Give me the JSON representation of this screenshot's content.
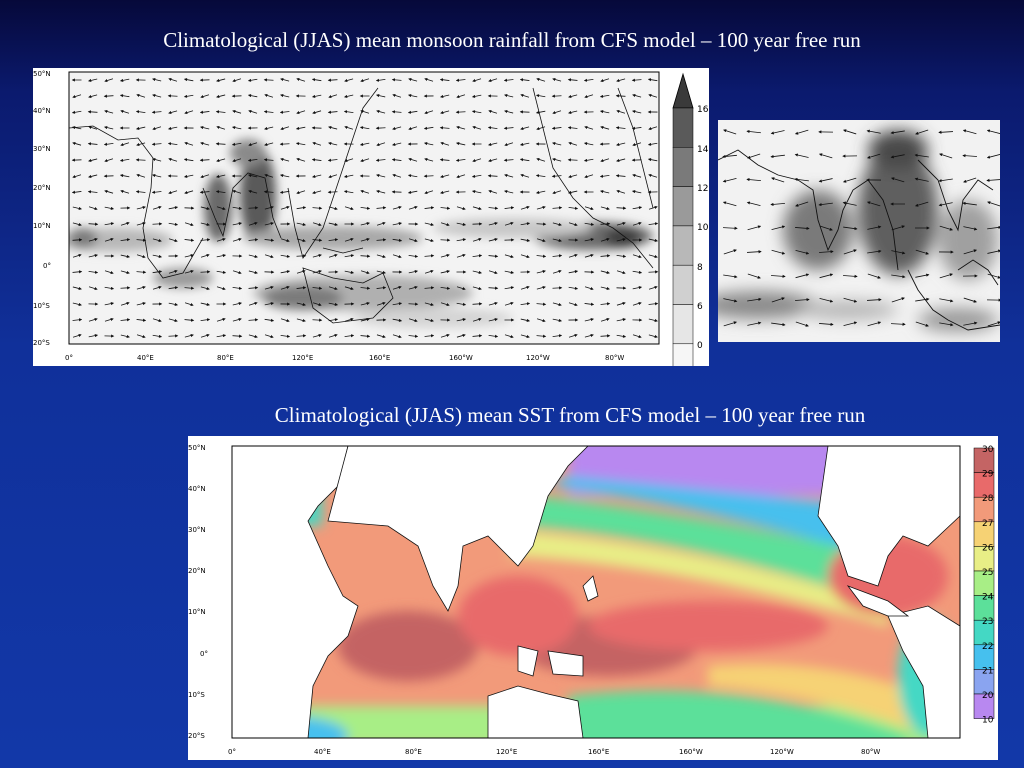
{
  "titles": {
    "rainfall": "Climatological (JJAS) mean monsoon rainfall from CFS model – 100 year free run",
    "sst": "Climatological (JJAS) mean SST from CFS model – 100 year free run"
  },
  "rainfall_map": {
    "lat_labels": [
      "50°N",
      "40°N",
      "30°N",
      "20°N",
      "10°N",
      "0°",
      "10°S",
      "20°S"
    ],
    "lon_labels": [
      "0°",
      "40°E",
      "80°E",
      "120°E",
      "160°E",
      "160°W",
      "120°W",
      "80°W"
    ],
    "colorbar_labels": [
      "16",
      "14",
      "12",
      "10",
      "8",
      "6",
      "0"
    ],
    "colorbar_colors": [
      "#5a5a5a",
      "#7a7a7a",
      "#9a9a9a",
      "#b8b8b8",
      "#d0d0d0",
      "#e6e6e6",
      "#f6f6f6"
    ]
  },
  "sst_map": {
    "lat_labels": [
      "50°N",
      "40°N",
      "30°N",
      "20°N",
      "10°N",
      "0°",
      "10°S",
      "20°S"
    ],
    "lon_labels": [
      "0°",
      "40°E",
      "80°E",
      "120°E",
      "160°E",
      "160°W",
      "120°W",
      "80°W"
    ],
    "colorbar_labels": [
      "30",
      "29",
      "28",
      "27",
      "26",
      "25",
      "24",
      "23",
      "22",
      "21",
      "20",
      "10"
    ],
    "colorbar_colors": [
      "#c46464",
      "#e86a6a",
      "#f29a7a",
      "#f6d274",
      "#e8ee86",
      "#a8ee86",
      "#5ce09a",
      "#44d8c4",
      "#46c0ee",
      "#8aa4f0",
      "#b888f0"
    ]
  }
}
